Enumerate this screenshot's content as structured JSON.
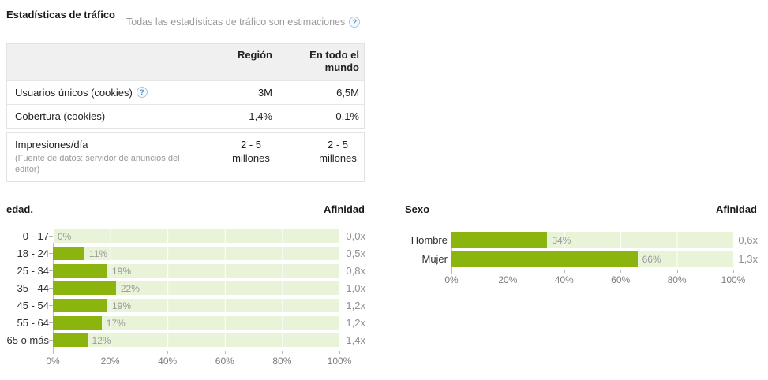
{
  "header": {
    "title": "Estadísticas de tráfico",
    "note": "Todas las estadísticas de tráfico son estimaciones",
    "help_icon": "?"
  },
  "stats_table": {
    "col_region": "Región",
    "col_world": "En todo el mundo",
    "help_icon": "?",
    "rows": [
      {
        "label": "Usuarios únicos (cookies)",
        "region": "3M",
        "world": "6,5M"
      },
      {
        "label": "Cobertura (cookies)",
        "region": "1,4%",
        "world": "0,1%"
      }
    ],
    "impressions": {
      "label": "Impresiones/día",
      "source_note": "(Fuente de datos: servidor de anuncios del editor)",
      "region": "2 - 5 millones",
      "world": "2 - 5 millones"
    }
  },
  "colors": {
    "bar_green": "#8bb40e",
    "track_green": "#e9f3d8",
    "header_gray": "#f0f0f0"
  },
  "chart_data": [
    {
      "type": "bar",
      "orientation": "horizontal",
      "title": "edad,",
      "affinity_header": "Afinidad",
      "categories": [
        "0 - 17",
        "18 - 24",
        "25 - 34",
        "35 - 44",
        "45 - 54",
        "55 - 64",
        "65 o más"
      ],
      "values": [
        0,
        11,
        19,
        22,
        19,
        17,
        12
      ],
      "value_labels": [
        "0%",
        "11%",
        "19%",
        "22%",
        "19%",
        "17%",
        "12%"
      ],
      "affinities": [
        "0,0x",
        "0,5x",
        "0,8x",
        "1,0x",
        "1,2x",
        "1,2x",
        "1,4x"
      ],
      "x_ticks": [
        "0%",
        "20%",
        "40%",
        "60%",
        "80%",
        "100%"
      ],
      "xlim": [
        0,
        100
      ],
      "grid": true,
      "legend": "none"
    },
    {
      "type": "bar",
      "orientation": "horizontal",
      "title": "Sexo",
      "affinity_header": "Afinidad",
      "categories": [
        "Hombre",
        "Mujer"
      ],
      "values": [
        34,
        66
      ],
      "value_labels": [
        "34%",
        "66%"
      ],
      "affinities": [
        "0,6x",
        "1,3x"
      ],
      "x_ticks": [
        "0%",
        "20%",
        "40%",
        "60%",
        "80%",
        "100%"
      ],
      "xlim": [
        0,
        100
      ],
      "grid": true,
      "legend": "none"
    }
  ]
}
